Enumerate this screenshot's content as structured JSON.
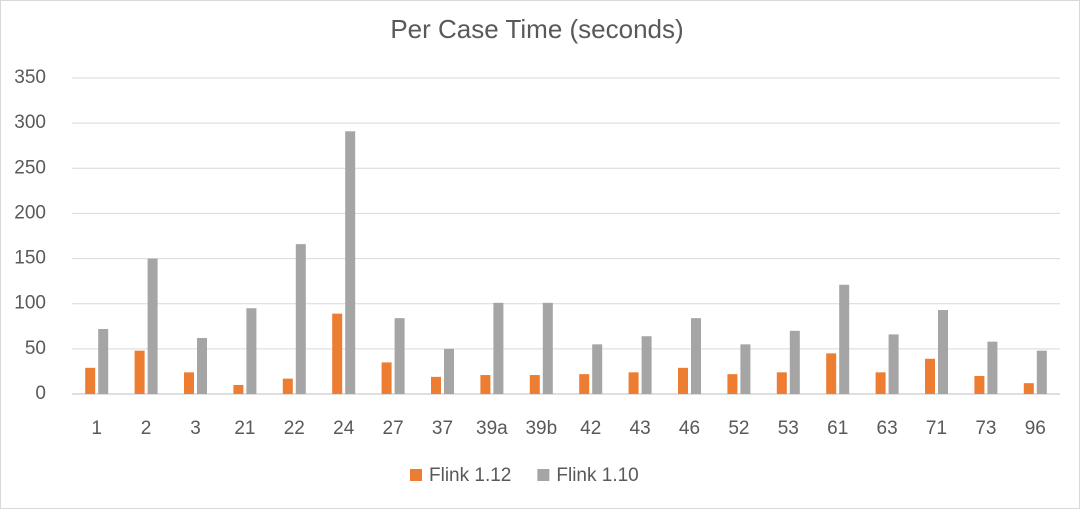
{
  "chart_data": {
    "type": "bar",
    "title": "Per Case Time (seconds)",
    "categories": [
      "1",
      "2",
      "3",
      "21",
      "22",
      "24",
      "27",
      "37",
      "39a",
      "39b",
      "42",
      "43",
      "46",
      "52",
      "53",
      "61",
      "63",
      "71",
      "73",
      "96"
    ],
    "series": [
      {
        "name": "Flink 1.12",
        "color": "#ed7d31",
        "values": [
          29,
          48,
          24,
          10,
          17,
          89,
          35,
          19,
          21,
          21,
          22,
          24,
          29,
          22,
          24,
          45,
          24,
          39,
          20,
          12
        ]
      },
      {
        "name": "Flink 1.10",
        "color": "#a5a5a5",
        "values": [
          72,
          150,
          62,
          95,
          166,
          291,
          84,
          50,
          101,
          101,
          55,
          64,
          84,
          55,
          70,
          121,
          66,
          93,
          58,
          48
        ]
      }
    ],
    "ylim": [
      0,
      350
    ],
    "yticks": [
      0,
      50,
      100,
      150,
      200,
      250,
      300,
      350
    ],
    "grid": true,
    "legend": "bottom"
  }
}
